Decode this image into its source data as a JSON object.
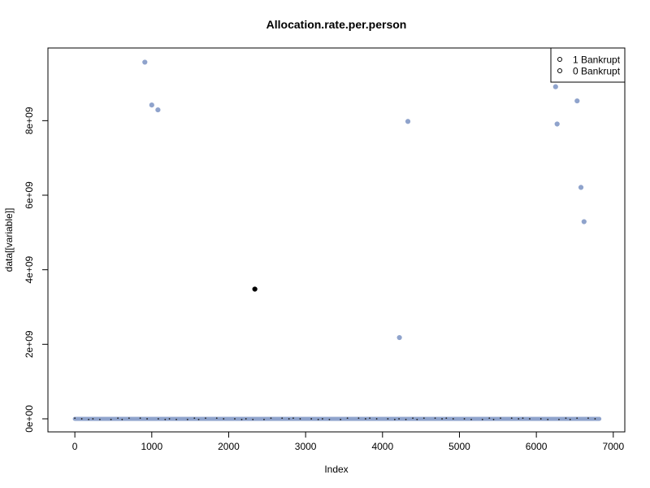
{
  "chart_data": {
    "type": "scatter",
    "title": "Allocation.rate.per.person",
    "xlabel": "Index",
    "ylabel": "data[[variable]]",
    "xlim": [
      -350,
      7150
    ],
    "ylim": [
      -350000000,
      9950000000
    ],
    "x_ticks": [
      0,
      1000,
      2000,
      3000,
      4000,
      5000,
      6000,
      7000
    ],
    "x_tick_labels": [
      "0",
      "1000",
      "2000",
      "3000",
      "4000",
      "5000",
      "6000",
      "7000"
    ],
    "y_ticks": [
      0,
      2000000000,
      4000000000,
      6000000000,
      8000000000
    ],
    "y_tick_labels": [
      "0e+00",
      "2e+09",
      "4e+09",
      "6e+09",
      "8e+09"
    ],
    "grid": false,
    "legend": {
      "position": "top-right",
      "entries": [
        "1 Bankrupt",
        "0 Bankrupt"
      ]
    },
    "colors": {
      "0 Bankrupt": "#8fa3cc",
      "1 Bankrupt": "#000000"
    },
    "series": [
      {
        "name": "0 Bankrupt",
        "points": [
          {
            "x": 910,
            "y": 9570000000
          },
          {
            "x": 1000,
            "y": 8420000000
          },
          {
            "x": 1080,
            "y": 8290000000
          },
          {
            "x": 4220,
            "y": 2180000000
          },
          {
            "x": 4330,
            "y": 7980000000
          },
          {
            "x": 6250,
            "y": 8910000000
          },
          {
            "x": 6270,
            "y": 7910000000
          },
          {
            "x": 6530,
            "y": 8530000000
          },
          {
            "x": 6580,
            "y": 6210000000
          },
          {
            "x": 6620,
            "y": 5290000000
          }
        ],
        "baseline": {
          "x_start": 0,
          "x_end": 6819,
          "y": 0
        }
      },
      {
        "name": "1 Bankrupt",
        "points": [
          {
            "x": 2340,
            "y": 3480000000
          }
        ]
      }
    ]
  }
}
